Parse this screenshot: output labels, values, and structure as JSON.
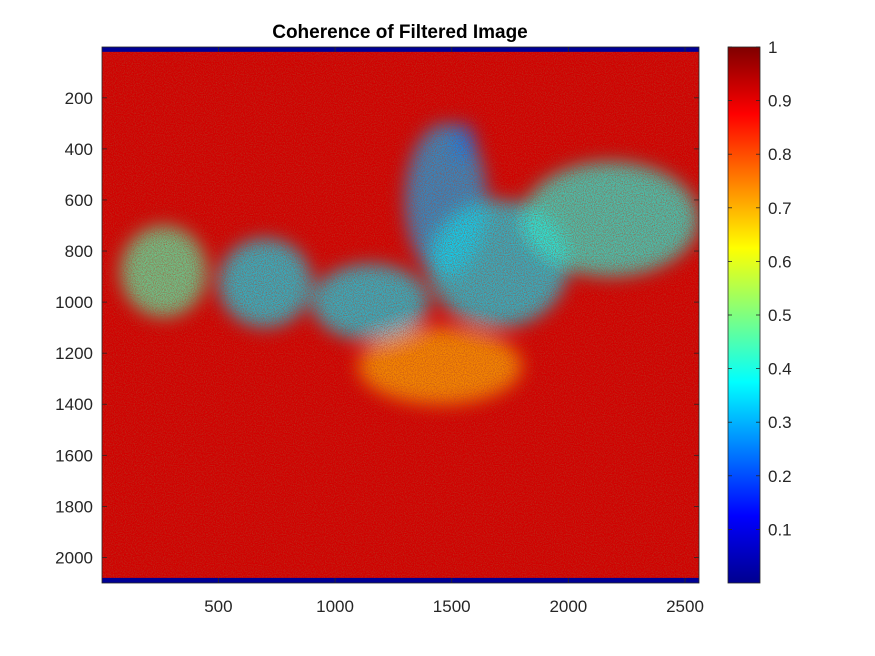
{
  "chart_data": {
    "type": "heatmap",
    "title": "Coherence of Filtered Image",
    "xlabel": "",
    "ylabel": "",
    "xlim": [
      1,
      2560
    ],
    "ylim": [
      1,
      2100
    ],
    "y_reversed": true,
    "x_ticks": [
      500,
      1000,
      1500,
      2000,
      2500
    ],
    "y_ticks": [
      200,
      400,
      600,
      800,
      1000,
      1200,
      1400,
      1600,
      1800,
      2000
    ],
    "colormap": "jet",
    "colorbar": {
      "limits": [
        0,
        1
      ],
      "ticks": [
        0.1,
        0.2,
        0.3,
        0.4,
        0.5,
        0.6,
        0.7,
        0.8,
        0.9,
        1
      ],
      "tick_labels": [
        "0.1",
        "0.2",
        "0.3",
        "0.4",
        "0.5",
        "0.6",
        "0.7",
        "0.8",
        "0.9",
        "1"
      ],
      "placement": "right"
    },
    "dominant_value": 0.92,
    "low_coherence_regions": [
      {
        "x_range": [
          80,
          450
        ],
        "y_range": [
          700,
          1060
        ],
        "value": 0.45
      },
      {
        "x_range": [
          500,
          900
        ],
        "y_range": [
          750,
          1100
        ],
        "value": 0.35
      },
      {
        "x_range": [
          900,
          1400
        ],
        "y_range": [
          850,
          1150
        ],
        "value": 0.35
      },
      {
        "x_range": [
          1300,
          1650
        ],
        "y_range": [
          300,
          900
        ],
        "value": 0.3
      },
      {
        "x_range": [
          1400,
          2000
        ],
        "y_range": [
          600,
          1100
        ],
        "value": 0.35
      },
      {
        "x_range": [
          1800,
          2560
        ],
        "y_range": [
          450,
          900
        ],
        "value": 0.4
      },
      {
        "x_range": [
          1500,
          1600
        ],
        "y_range": [
          300,
          450
        ],
        "value": 0.25
      }
    ],
    "medium_coherence_regions": [
      {
        "x_range": [
          1100,
          1800
        ],
        "y_range": [
          1100,
          1400
        ],
        "value": 0.7
      }
    ],
    "edge_strips": [
      {
        "side": "top",
        "y_range": [
          1,
          20
        ],
        "value": 0.02
      },
      {
        "side": "bottom",
        "y_range": [
          2080,
          2100
        ],
        "value": 0.02
      }
    ]
  }
}
